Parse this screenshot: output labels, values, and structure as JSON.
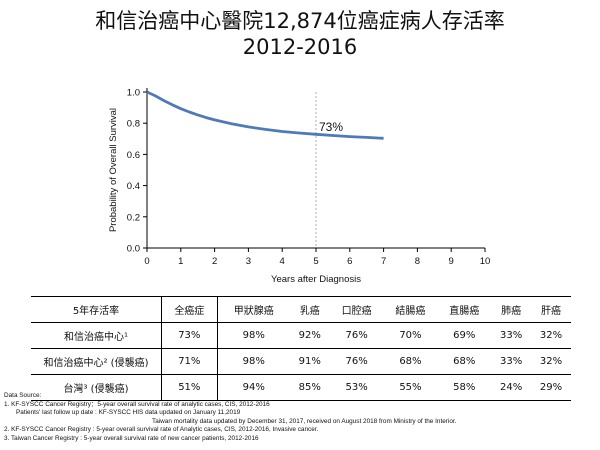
{
  "title_line1": "和信治癌中心醫院12,874位癌症病人存活率",
  "title_line2": "2012-2016",
  "chart_data": {
    "type": "line",
    "xlabel": "Years after Diagnosis",
    "ylabel": "Probability of Overall Survival",
    "xlim": [
      0,
      10
    ],
    "ylim": [
      0,
      1.0
    ],
    "x_ticks": [
      "0",
      "1",
      "2",
      "3",
      "4",
      "5",
      "6",
      "7",
      "8",
      "9",
      "10"
    ],
    "y_ticks": [
      "0.0",
      "0.2",
      "0.4",
      "0.6",
      "0.8",
      "1.0"
    ],
    "grid": false,
    "line_color": "#4f7ab8",
    "reference_x": 5,
    "annotation": "73%",
    "series": [
      {
        "x": [
          0,
          0.25,
          0.5,
          0.75,
          1.0,
          1.25,
          1.5,
          1.75,
          2.0,
          2.5,
          3.0,
          3.5,
          4.0,
          4.5,
          5.0,
          5.5,
          6.0,
          6.5,
          7.0
        ],
        "y": [
          1.0,
          0.975,
          0.945,
          0.918,
          0.893,
          0.872,
          0.853,
          0.836,
          0.821,
          0.796,
          0.776,
          0.76,
          0.747,
          0.737,
          0.729,
          0.721,
          0.714,
          0.709,
          0.703
        ]
      }
    ]
  },
  "table": {
    "headers": [
      "5年存活率",
      "全癌症",
      "甲狀腺癌",
      "乳癌",
      "口腔癌",
      "結腸癌",
      "直腸癌",
      "肺癌",
      "肝癌"
    ],
    "rows": [
      {
        "label": "和信治癌中心¹",
        "values": [
          "73%",
          "98%",
          "92%",
          "76%",
          "70%",
          "69%",
          "33%",
          "32%"
        ]
      },
      {
        "label": "和信治癌中心² (侵襲癌)",
        "values": [
          "71%",
          "98%",
          "91%",
          "76%",
          "68%",
          "68%",
          "33%",
          "32%"
        ]
      },
      {
        "label": "台灣³ (侵襲癌)",
        "values": [
          "51%",
          "94%",
          "85%",
          "53%",
          "55%",
          "58%",
          "24%",
          "29%"
        ]
      }
    ]
  },
  "sources": {
    "heading": "Data Source:",
    "line1": "1. KF-SYSCC Cancer Registry：5-year overall survival rate of analytic cases, CIS, 2012-2016",
    "line2": "Patients' last follow up date : KF-SYSCC HIS data updated on January 11,2019",
    "line3": "Taiwan mortality data updated by December 31, 2017, received on August 2018 from Ministry of the Interior.",
    "line4": "2. KF-SYSCC Cancer Registry : 5-year overall survival rate of Analytic cases, CIS, 2012-2016, Invasive cancer.",
    "line5": "3. Taiwan Cancer Registry : 5-year overall survival rate of new cancer patients, 2012-2016"
  }
}
